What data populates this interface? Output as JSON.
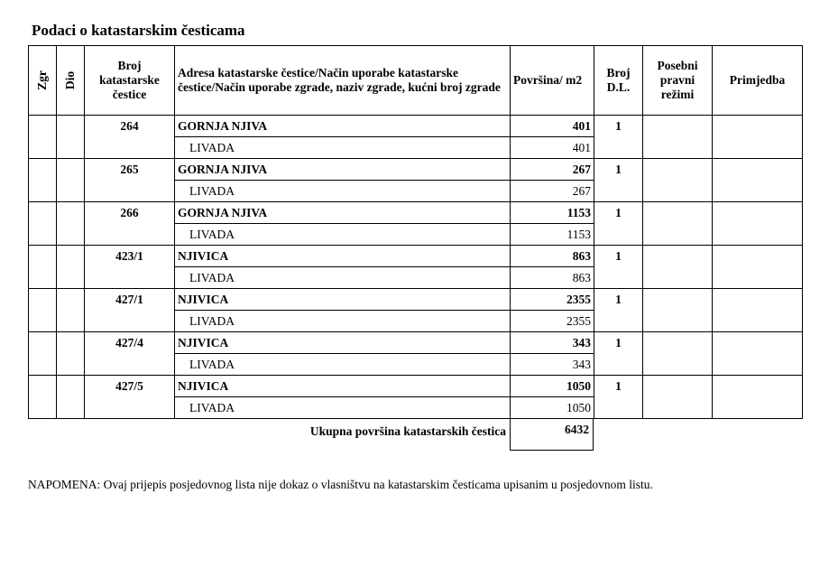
{
  "header": {
    "title": "Podaci o katastarskim česticama"
  },
  "table": {
    "columns": [
      "Zgr",
      "Dio",
      "Broj katastarske čestice",
      "Adresa katastarske čestice/Način uporabe katastarske čestice/Način uporabe zgrade, naziv zgrade, kućni broj zgrade",
      "Površina/ m2",
      "Broj D.L.",
      "Posebni pravni režimi",
      "Primjedba"
    ],
    "rows": [
      {
        "broj": "264",
        "name": "GORNJA NJIVA",
        "area": 401,
        "dl": 1,
        "use": "LIVADA",
        "use_area": 401
      },
      {
        "broj": "265",
        "name": "GORNJA NJIVA",
        "area": 267,
        "dl": 1,
        "use": "LIVADA",
        "use_area": 267
      },
      {
        "broj": "266",
        "name": "GORNJA NJIVA",
        "area": 1153,
        "dl": 1,
        "use": "LIVADA",
        "use_area": 1153
      },
      {
        "broj": "423/1",
        "name": "NJIVICA",
        "area": 863,
        "dl": 1,
        "use": "LIVADA",
        "use_area": 863
      },
      {
        "broj": "427/1",
        "name": "NJIVICA",
        "area": 2355,
        "dl": 1,
        "use": "LIVADA",
        "use_area": 2355
      },
      {
        "broj": "427/4",
        "name": "NJIVICA",
        "area": 343,
        "dl": 1,
        "use": "LIVADA",
        "use_area": 343
      },
      {
        "broj": "427/5",
        "name": "NJIVICA",
        "area": 1050,
        "dl": 1,
        "use": "LIVADA",
        "use_area": 1050
      }
    ],
    "total_label": "Ukupna površina katastarskih čestica",
    "total": 6432
  },
  "note": "NAPOMENA: Ovaj prijepis posjedovnog lista nije dokaz o vlasništvu na katastarskim česticama upisanim u posjedovnom listu."
}
